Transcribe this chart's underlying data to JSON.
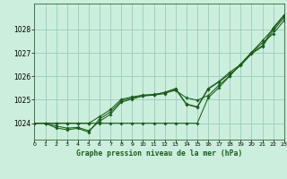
{
  "title": "Graphe pression niveau de la mer (hPa)",
  "bg_color": "#cceedd",
  "grid_color": "#99ccbb",
  "line_color": "#1a5c1a",
  "xlim": [
    0,
    23
  ],
  "ylim": [
    1023.3,
    1029.1
  ],
  "yticks": [
    1024,
    1025,
    1026,
    1027,
    1028
  ],
  "xticks": [
    0,
    1,
    2,
    3,
    4,
    5,
    6,
    7,
    8,
    9,
    10,
    11,
    12,
    13,
    14,
    15,
    16,
    17,
    18,
    19,
    20,
    21,
    22,
    23
  ],
  "series": [
    [
      1024.0,
      1024.0,
      1023.8,
      1023.72,
      1023.78,
      1023.62,
      1024.18,
      1024.48,
      1024.95,
      1025.08,
      1025.18,
      1025.2,
      1025.32,
      1025.48,
      1024.82,
      1024.7,
      1025.48,
      1025.78,
      1026.18,
      1026.5,
      1027.0,
      1027.3,
      1028.08,
      1028.62
    ],
    [
      1024.0,
      1024.0,
      1023.88,
      1023.79,
      1023.82,
      1023.68,
      1024.08,
      1024.38,
      1024.9,
      1025.03,
      1025.16,
      1025.2,
      1025.26,
      1025.45,
      1024.8,
      1024.68,
      1025.45,
      1025.76,
      1026.1,
      1026.46,
      1026.96,
      1027.27,
      1027.95,
      1028.5
    ],
    [
      1024.0,
      1024.0,
      1024.0,
      1024.0,
      1024.0,
      1024.0,
      1024.28,
      1024.58,
      1025.02,
      1025.12,
      1025.2,
      1025.23,
      1025.3,
      1025.4,
      1025.08,
      1024.98,
      1025.18,
      1025.62,
      1026.02,
      1026.52,
      1027.02,
      1027.42,
      1027.82,
      1028.38
    ],
    [
      1024.0,
      1024.0,
      1024.0,
      1024.0,
      1024.0,
      1024.0,
      1024.0,
      1024.0,
      1024.0,
      1024.0,
      1024.0,
      1024.0,
      1024.0,
      1024.0,
      1024.0,
      1024.0,
      1025.08,
      1025.52,
      1026.02,
      1026.52,
      1027.02,
      1027.52,
      1028.02,
      1028.58
    ]
  ]
}
